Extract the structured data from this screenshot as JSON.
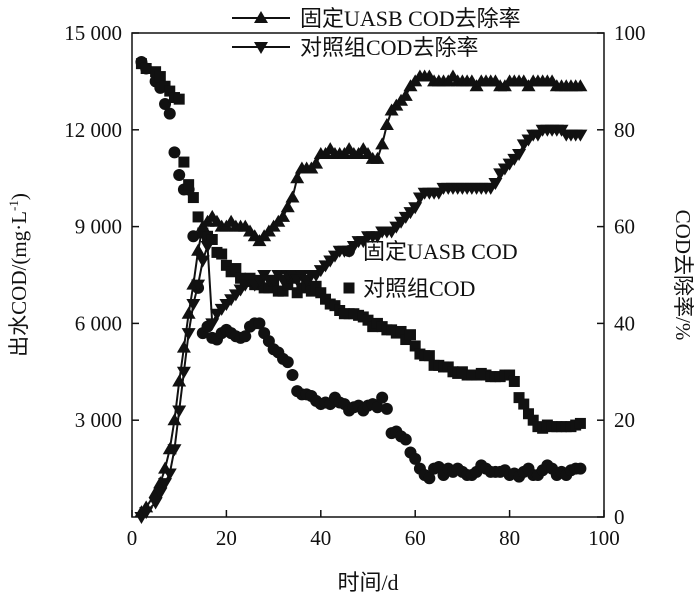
{
  "chart_data": {
    "type": "scatter",
    "xlabel": "时间/d",
    "ylabel_left": "出水COD/(mg·L",
    "ylabel_left_sup": "-1",
    "ylabel_left_close": ")",
    "ylabel_right": "COD去除率/%",
    "xlim": [
      0,
      100
    ],
    "ylim_left": [
      0,
      15000
    ],
    "ylim_right": [
      0,
      100
    ],
    "x_ticks": [
      "0",
      "20",
      "40",
      "60",
      "80",
      "100"
    ],
    "y_left_ticks": [
      "3 000",
      "6 000",
      "9 000",
      "12 000",
      "15 000"
    ],
    "y_right_ticks": [
      "0",
      "20",
      "40",
      "60",
      "80",
      "100"
    ],
    "colors": {
      "ink": "#111111"
    },
    "legend_top": [
      {
        "label": "固定UASB COD去除率",
        "marker": "triangle-up"
      },
      {
        "label": "对照组COD去除率",
        "marker": "triangle-down"
      }
    ],
    "legend_mid": [
      {
        "label": "固定UASB COD",
        "marker": "circle"
      },
      {
        "label": "对照组COD",
        "marker": "square"
      }
    ],
    "series": [
      {
        "name": "固定UASB COD",
        "axis": "left",
        "marker": "circle",
        "line": false,
        "x": [
          2,
          3,
          5,
          6,
          7,
          8,
          9,
          10,
          11,
          12,
          13,
          14,
          15,
          16,
          17,
          18,
          19,
          20,
          21,
          22,
          23,
          24,
          25,
          26,
          27,
          28,
          29,
          30,
          31,
          32,
          33,
          34,
          35,
          36,
          37,
          38,
          39,
          40,
          41,
          42,
          43,
          44,
          45,
          46,
          47,
          48,
          49,
          50,
          51,
          52,
          53,
          54,
          55,
          56,
          57,
          58,
          59,
          60,
          61,
          62,
          63,
          64,
          65,
          66,
          67,
          68,
          69,
          70,
          71,
          72,
          73,
          74,
          75,
          76,
          77,
          78,
          79,
          80,
          81,
          82,
          83,
          84,
          85,
          86,
          87,
          88,
          89,
          90,
          91,
          92,
          93,
          94,
          95
        ],
        "y": [
          14100,
          13900,
          13500,
          13300,
          12800,
          12500,
          11300,
          10600,
          10150,
          10150,
          8700,
          7100,
          5700,
          5900,
          5550,
          5500,
          5700,
          5800,
          5700,
          5600,
          5550,
          5600,
          5900,
          6000,
          6000,
          5700,
          5450,
          5200,
          5100,
          4900,
          4800,
          4400,
          3900,
          3800,
          3800,
          3750,
          3600,
          3500,
          3550,
          3500,
          3700,
          3550,
          3500,
          3300,
          3400,
          3450,
          3300,
          3450,
          3500,
          3400,
          3700,
          3350,
          2600,
          2650,
          2500,
          2400,
          2000,
          1800,
          1500,
          1300,
          1200,
          1500,
          1550,
          1300,
          1500,
          1400,
          1500,
          1400,
          1300,
          1300,
          1400,
          1600,
          1500,
          1400,
          1400,
          1400,
          1450,
          1300,
          1350,
          1250,
          1400,
          1500,
          1300,
          1300,
          1450,
          1600,
          1500,
          1300,
          1400,
          1300,
          1450,
          1500,
          1500
        ]
      },
      {
        "name": "对照组COD",
        "axis": "left",
        "marker": "square",
        "line": false,
        "x": [
          2,
          3,
          5,
          6,
          7,
          8,
          9,
          10,
          11,
          12,
          13,
          14,
          15,
          16,
          17,
          18,
          19,
          20,
          21,
          22,
          23,
          24,
          25,
          26,
          27,
          28,
          29,
          30,
          31,
          32,
          33,
          34,
          35,
          36,
          37,
          38,
          39,
          40,
          41,
          42,
          43,
          44,
          45,
          46,
          47,
          48,
          49,
          50,
          51,
          52,
          53,
          54,
          55,
          56,
          57,
          58,
          59,
          60,
          61,
          62,
          63,
          64,
          65,
          66,
          67,
          68,
          69,
          70,
          71,
          72,
          73,
          74,
          75,
          76,
          77,
          78,
          79,
          80,
          81,
          82,
          83,
          84,
          85,
          86,
          87,
          88,
          89,
          90,
          91,
          92,
          93,
          94,
          95
        ],
        "y": [
          14050,
          13900,
          13800,
          13650,
          13350,
          13200,
          13000,
          12950,
          11000,
          10300,
          9900,
          9300,
          8800,
          8700,
          8600,
          8200,
          8150,
          7800,
          7600,
          7700,
          7400,
          7300,
          7400,
          7200,
          7200,
          7100,
          7100,
          7300,
          7000,
          7000,
          7200,
          7400,
          6950,
          7100,
          7200,
          7000,
          7150,
          6950,
          6750,
          6600,
          6550,
          6400,
          6300,
          6300,
          6300,
          6250,
          6200,
          6100,
          5900,
          6000,
          5900,
          5800,
          5800,
          5700,
          5750,
          5500,
          5650,
          5300,
          5050,
          5000,
          5000,
          4700,
          4700,
          4650,
          4650,
          4500,
          4450,
          4500,
          4400,
          4400,
          4400,
          4450,
          4400,
          4350,
          4350,
          4350,
          4400,
          4400,
          4200,
          3700,
          3500,
          3200,
          3000,
          2800,
          2750,
          2850,
          2800,
          2800,
          2800,
          2800,
          2800,
          2850,
          2900
        ]
      },
      {
        "name": "固定UASB COD去除率",
        "axis": "right",
        "marker": "triangle-up",
        "line": true,
        "x": [
          2,
          3,
          5,
          6,
          7,
          8,
          9,
          10,
          11,
          12,
          13,
          14,
          15,
          16,
          17,
          18,
          19,
          20,
          21,
          22,
          23,
          24,
          25,
          26,
          27,
          28,
          29,
          30,
          31,
          32,
          33,
          34,
          35,
          36,
          37,
          38,
          39,
          40,
          41,
          42,
          43,
          44,
          45,
          46,
          47,
          48,
          49,
          50,
          51,
          52,
          53,
          54,
          55,
          56,
          57,
          58,
          59,
          60,
          61,
          62,
          63,
          64,
          65,
          66,
          67,
          68,
          69,
          70,
          71,
          72,
          73,
          74,
          75,
          76,
          77,
          78,
          79,
          80,
          81,
          82,
          83,
          84,
          85,
          86,
          87,
          88,
          89,
          90,
          91,
          92,
          93,
          94,
          95
        ],
        "y": [
          1,
          2,
          5,
          7,
          10,
          14,
          20,
          28,
          35,
          42,
          48,
          55,
          60,
          61,
          62,
          61,
          60,
          60,
          61,
          60,
          60,
          60,
          59,
          58,
          57,
          58,
          59,
          60,
          61,
          62,
          64,
          66,
          70,
          72,
          72,
          72,
          73,
          75,
          75,
          76,
          75,
          75,
          75,
          76,
          75,
          75,
          76,
          75,
          74,
          74,
          77,
          81,
          84,
          85,
          86,
          87,
          89,
          90,
          91,
          91,
          91,
          90,
          90,
          90,
          90,
          91,
          90,
          90,
          90,
          90,
          89,
          90,
          90,
          90,
          90,
          89,
          89,
          90,
          90,
          90,
          90,
          89,
          90,
          90,
          90,
          90,
          90,
          89,
          89,
          89,
          89,
          89,
          89
        ]
      },
      {
        "name": "对照组COD去除率",
        "axis": "right",
        "marker": "triangle-down",
        "line": true,
        "x": [
          2,
          3,
          5,
          6,
          7,
          8,
          9,
          10,
          11,
          12,
          13,
          14,
          15,
          16,
          17,
          18,
          19,
          20,
          21,
          22,
          23,
          24,
          25,
          26,
          27,
          28,
          29,
          30,
          31,
          32,
          33,
          34,
          35,
          36,
          37,
          38,
          39,
          40,
          41,
          42,
          43,
          44,
          45,
          46,
          47,
          48,
          49,
          50,
          51,
          52,
          53,
          54,
          55,
          56,
          57,
          58,
          59,
          60,
          61,
          62,
          63,
          64,
          65,
          66,
          67,
          68,
          69,
          70,
          71,
          72,
          73,
          74,
          75,
          76,
          77,
          78,
          79,
          80,
          81,
          82,
          83,
          84,
          85,
          86,
          87,
          88,
          89,
          90,
          91,
          92,
          93,
          94,
          95
        ],
        "y": [
          0,
          1,
          3,
          5,
          7,
          9,
          14,
          22,
          30,
          38,
          44,
          48,
          53,
          56,
          40,
          42,
          43,
          44,
          45,
          46,
          47,
          48,
          49,
          48,
          49,
          50,
          49,
          49,
          50,
          49,
          50,
          50,
          49,
          50,
          49,
          50,
          50,
          51,
          52,
          53,
          54,
          55,
          55,
          55,
          56,
          57,
          57,
          58,
          58,
          58,
          59,
          59,
          59,
          60,
          61,
          62,
          63,
          64,
          66,
          67,
          67,
          67,
          67,
          68,
          68,
          68,
          68,
          68,
          68,
          68,
          68,
          68,
          68,
          68,
          69,
          71,
          72,
          73,
          74,
          75,
          77,
          78,
          79,
          79,
          80,
          80,
          80,
          80,
          80,
          79,
          79,
          79,
          79
        ]
      }
    ]
  }
}
